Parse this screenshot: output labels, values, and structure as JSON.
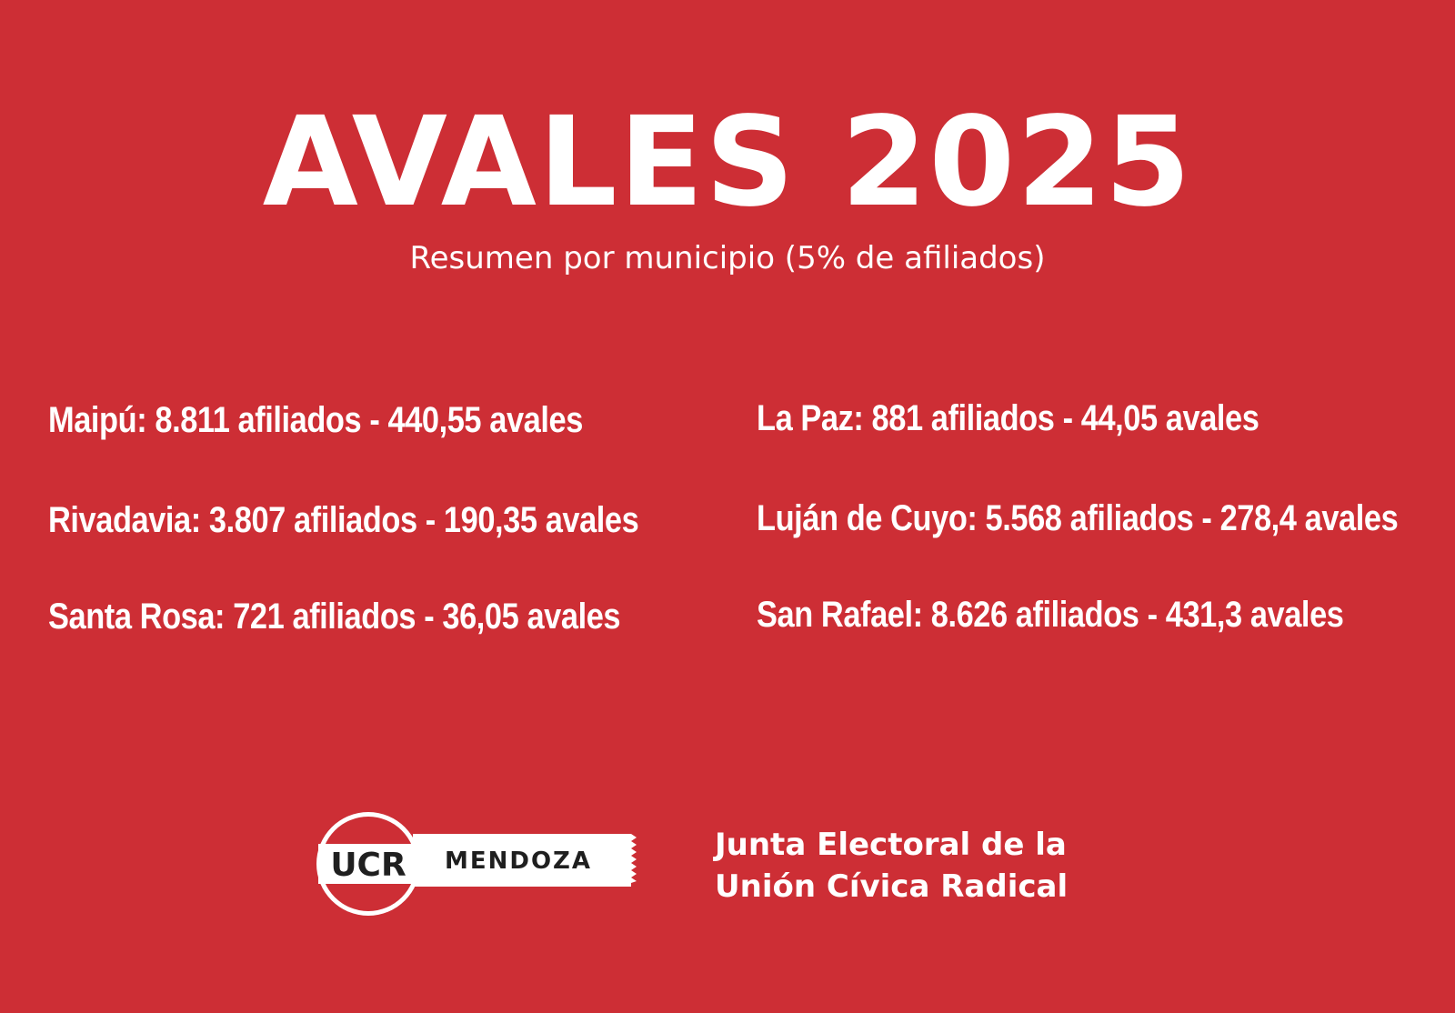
{
  "header": {
    "title": "AVALES 2025",
    "subtitle": "Resumen por municipio (5% de afiliados)"
  },
  "municipios": [
    {
      "text": "Maipú: 8.811 afiliados - 440,55 avales"
    },
    {
      "text": "Rivadavia: 3.807 afiliados - 190,35 avales"
    },
    {
      "text": "Santa Rosa: 721 afiliados - 36,05 avales"
    },
    {
      "text": "La Paz: 881 afiliados - 44,05 avales"
    },
    {
      "text": "Luján de Cuyo: 5.568 afiliados - 278,4 avales"
    },
    {
      "text": "San Rafael: 8.626 afiliados - 431,3 avales"
    }
  ],
  "footer": {
    "logo_text": "UCR",
    "logo_tag": "MENDOZA",
    "org_line1": "Junta Electoral de la",
    "org_line2": "Unión Cívica Radical"
  },
  "colors": {
    "background": "#cd2e35",
    "text": "#ffffff",
    "logo_dark": "#1f1f1f"
  }
}
